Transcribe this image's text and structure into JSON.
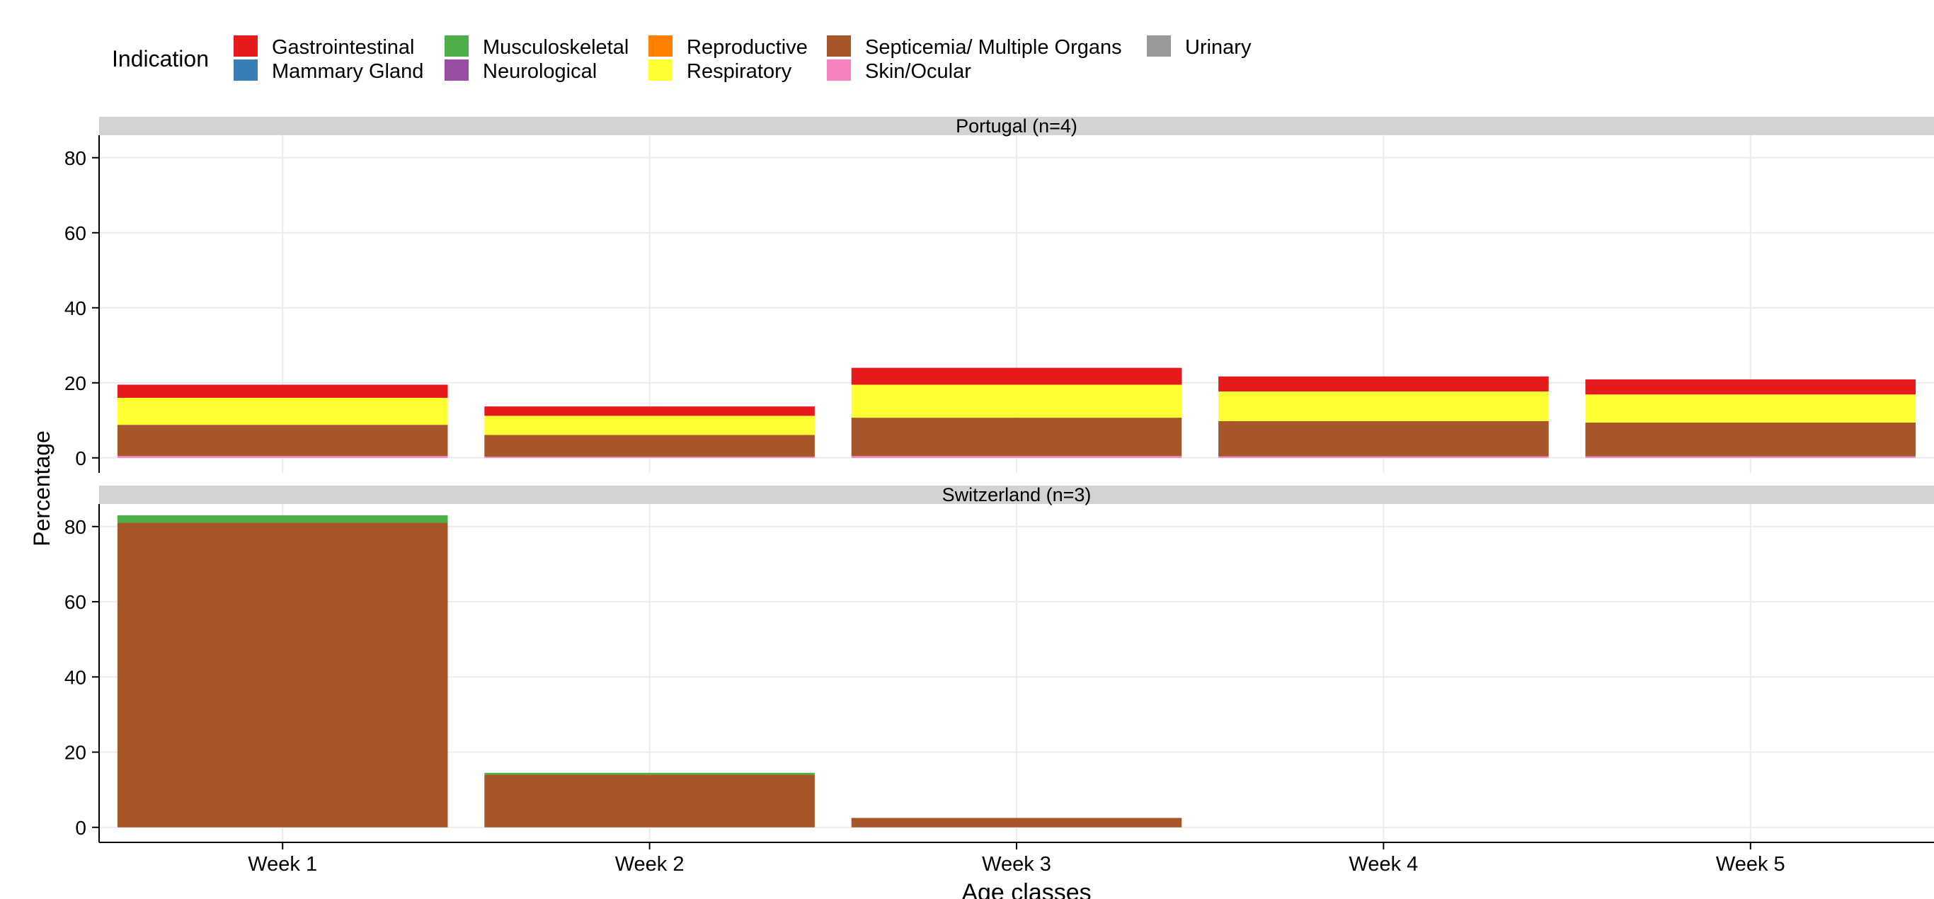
{
  "chart_data": {
    "type": "bar",
    "stacked": true,
    "facet_layout": "rows",
    "legend_title": "Indication",
    "legend_position": "top-left",
    "xlabel": "Age classes",
    "ylabel": "Percentage",
    "categories": [
      "Week 1",
      "Week 2",
      "Week 3",
      "Week 4",
      "Week 5"
    ],
    "ylim": [
      -4,
      86
    ],
    "yticks": [
      0,
      20,
      40,
      60,
      80
    ],
    "grid": true,
    "legend": [
      {
        "name": "Gastrointestinal",
        "color": "#E41A1C"
      },
      {
        "name": "Mammary Gland",
        "color": "#377EB8"
      },
      {
        "name": "Musculoskeletal",
        "color": "#4DAF4A"
      },
      {
        "name": "Neurological",
        "color": "#984EA3"
      },
      {
        "name": "Reproductive",
        "color": "#FF7F00"
      },
      {
        "name": "Respiratory",
        "color": "#FFFF33"
      },
      {
        "name": "Septicemia/ Multiple Organs",
        "color": "#A65628"
      },
      {
        "name": "Skin/Ocular",
        "color": "#F781BF"
      },
      {
        "name": "Urinary",
        "color": "#999999"
      }
    ],
    "panels": [
      {
        "title": "Portugal (n=4)",
        "series": [
          {
            "name": "Skin/Ocular",
            "color": "#F781BF",
            "values": [
              0.5,
              0.3,
              0.5,
              0.4,
              0.4
            ]
          },
          {
            "name": "Septicemia/ Multiple Organs",
            "color": "#A65628",
            "values": [
              8.3,
              5.8,
              10.2,
              9.4,
              9.0
            ]
          },
          {
            "name": "Respiratory",
            "color": "#FFFF33",
            "values": [
              7.2,
              5.1,
              8.8,
              7.9,
              7.5
            ]
          },
          {
            "name": "Gastrointestinal",
            "color": "#E41A1C",
            "values": [
              3.5,
              2.5,
              4.5,
              4.0,
              4.0
            ]
          }
        ]
      },
      {
        "title": "Switzerland (n=3)",
        "series": [
          {
            "name": "Septicemia/ Multiple Organs",
            "color": "#A65628",
            "values": [
              81.0,
              14.0,
              2.5,
              0,
              0
            ]
          },
          {
            "name": "Musculoskeletal",
            "color": "#4DAF4A",
            "values": [
              2.0,
              0.5,
              0,
              0,
              0
            ]
          }
        ]
      }
    ]
  }
}
